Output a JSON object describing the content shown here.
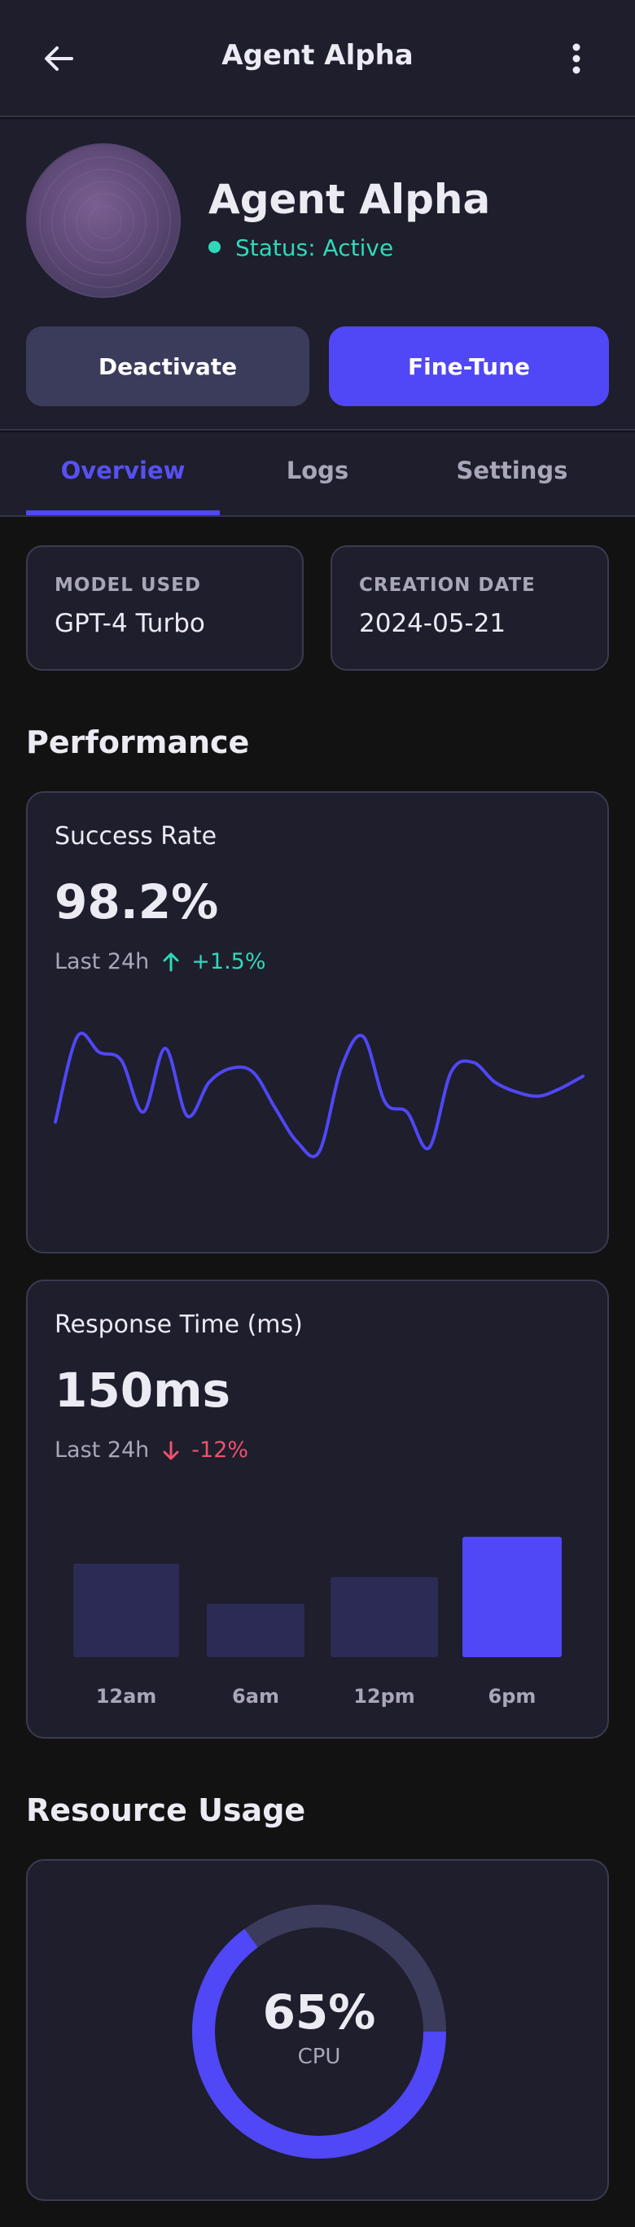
{
  "header": {
    "title": "Agent Alpha",
    "back_icon": "arrow-left-icon",
    "more_icon": "more-vertical-icon"
  },
  "profile": {
    "name": "Agent Alpha",
    "status": "Status: Active",
    "status_color": "#2fd9b8",
    "deactivate_label": "Deactivate",
    "finetune_label": "Fine-Tune"
  },
  "tabs": [
    {
      "label": "Overview",
      "active": true
    },
    {
      "label": "Logs",
      "active": false
    },
    {
      "label": "Settings",
      "active": false
    }
  ],
  "info": {
    "model_label": "MODEL USED",
    "model_value": "GPT-4 Turbo",
    "date_label": "CREATION DATE",
    "date_value": "2024-05-21"
  },
  "performance": {
    "section_title": "Performance",
    "success": {
      "title": "Success Rate",
      "value": "98.2%",
      "period": "Last 24h",
      "delta": "+1.5%",
      "delta_direction": "up"
    },
    "response": {
      "title": "Response Time (ms)",
      "value": "150ms",
      "period": "Last 24h",
      "delta": "-12%",
      "delta_direction": "down"
    }
  },
  "resource": {
    "section_title": "Resource Usage",
    "cpu_value": "65%",
    "cpu_label": "CPU",
    "cpu_fraction": 0.65
  },
  "colors": {
    "accent": "#5047f6",
    "bar_muted": "#2c2b55",
    "positive": "#2fd9b8",
    "negative": "#f0506e"
  },
  "chart_data": [
    {
      "type": "line",
      "title": "",
      "x": [
        0,
        1,
        2,
        3,
        4,
        5,
        6,
        7,
        8,
        9,
        10,
        11,
        12,
        13,
        14,
        15,
        16,
        17,
        18,
        19,
        20,
        21,
        22,
        23,
        24
      ],
      "values": [
        35,
        78,
        70,
        66,
        40,
        72,
        38,
        55,
        62,
        60,
        42,
        25,
        20,
        62,
        78,
        45,
        40,
        22,
        60,
        65,
        55,
        50,
        48,
        52,
        58
      ],
      "xlabel": "",
      "ylabel": "",
      "grid": false
    },
    {
      "type": "bar",
      "title": "",
      "categories": [
        "12am",
        "6am",
        "12pm",
        "6pm"
      ],
      "values": [
        140,
        80,
        120,
        180
      ],
      "highlight_index": 3,
      "ylim": [
        0,
        180
      ],
      "grid": false
    }
  ]
}
